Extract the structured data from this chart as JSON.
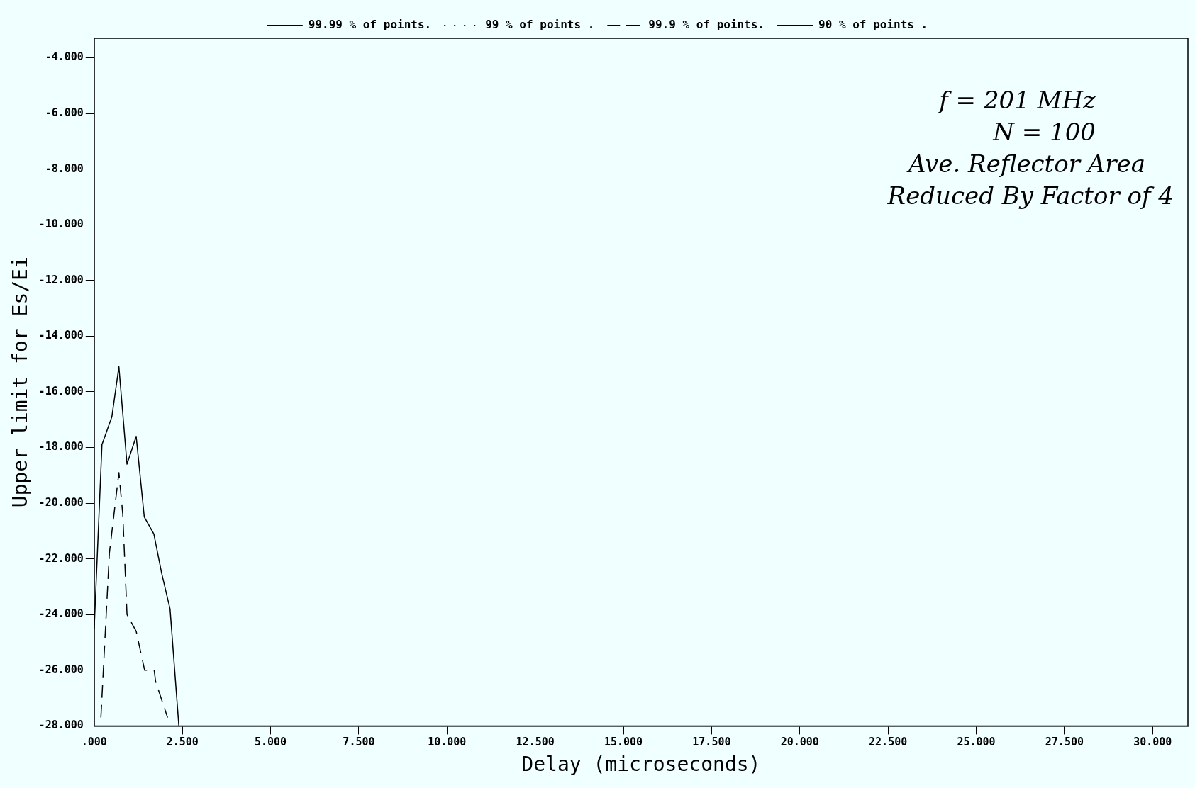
{
  "chart_data": {
    "type": "line",
    "xlabel": "Delay (microseconds)",
    "ylabel": "Upper limit for Es/Ei",
    "annotations": [
      "f = 201 MHz",
      "N = 100",
      "Ave. Reflector Area",
      "Reduced By Factor of 4"
    ],
    "xlim": [
      0,
      31
    ],
    "xticks": [
      {
        "value": 0,
        "label": ".000"
      },
      {
        "value": 2.5,
        "label": "2.500"
      },
      {
        "value": 5,
        "label": "5.000"
      },
      {
        "value": 7.5,
        "label": "7.500"
      },
      {
        "value": 10,
        "label": "10.000"
      },
      {
        "value": 12.5,
        "label": "12.500"
      },
      {
        "value": 15,
        "label": "15.000"
      },
      {
        "value": 17.5,
        "label": "17.500"
      },
      {
        "value": 20,
        "label": "20.000"
      },
      {
        "value": 22.5,
        "label": "22.500"
      },
      {
        "value": 25,
        "label": "25.000"
      },
      {
        "value": 27.5,
        "label": "27.500"
      },
      {
        "value": 30,
        "label": "30.000"
      }
    ],
    "ylim": [
      -28,
      -3.3
    ],
    "yticks": [
      {
        "value": -4,
        "label": "-4.000"
      },
      {
        "value": -6,
        "label": "-6.000"
      },
      {
        "value": -8,
        "label": "-8.000"
      },
      {
        "value": -10,
        "label": "-10.000"
      },
      {
        "value": -12,
        "label": "-12.000"
      },
      {
        "value": -14,
        "label": "-14.000"
      },
      {
        "value": -16,
        "label": "-16.000"
      },
      {
        "value": -18,
        "label": "-18.000"
      },
      {
        "value": -20,
        "label": "-20.000"
      },
      {
        "value": -22,
        "label": "-22.000"
      },
      {
        "value": -24,
        "label": "-24.000"
      },
      {
        "value": -26,
        "label": "-26.000"
      },
      {
        "value": -28,
        "label": "-28.000"
      }
    ],
    "grid": false,
    "legend": "top",
    "marker": "none",
    "series": [
      {
        "name": "99.99 % of points.",
        "color": "#000000",
        "line_style": "solid",
        "x": [
          0,
          0.22,
          0.5,
          0.7,
          0.93,
          1.19,
          1.42,
          1.69,
          1.91,
          2.15,
          2.4
        ],
        "values": [
          -24.5,
          -17.9,
          -16.9,
          -15.1,
          -18.6,
          -17.6,
          -20.5,
          -21.1,
          -22.5,
          -23.8,
          -28
        ]
      },
      {
        "name": "99 % of points .",
        "color": "#000000",
        "line_style": "dotted"
      },
      {
        "name": "99.9 % of points.",
        "color": "#000000",
        "line_style": "dashed",
        "x": [
          0.19,
          0.43,
          0.7,
          0.81,
          0.93,
          1.19,
          1.43,
          1.7,
          1.74,
          2.08
        ],
        "values": [
          -27.7,
          -21.8,
          -18.9,
          -20.4,
          -24,
          -24.6,
          -26,
          -26,
          -26.4,
          -27.7
        ]
      },
      {
        "name": "90 % of points .",
        "color": "#000000",
        "line_style": "solid"
      }
    ]
  }
}
